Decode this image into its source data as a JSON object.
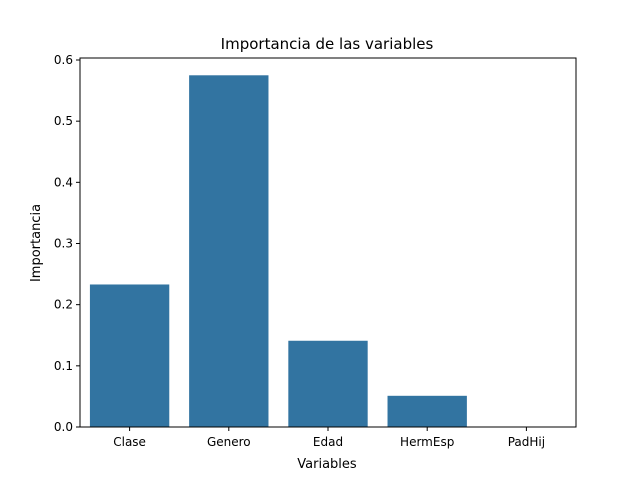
{
  "chart_data": {
    "type": "bar",
    "title": "Importancia de las variables",
    "xlabel": "Variables",
    "ylabel": "Importancia",
    "categories": [
      "Clase",
      "Genero",
      "Edad",
      "HermEsp",
      "PadHij"
    ],
    "values": [
      0.233,
      0.575,
      0.141,
      0.051,
      0.0
    ],
    "ylim": [
      0,
      0.6
    ],
    "yticks": [
      "0.0",
      "0.1",
      "0.2",
      "0.3",
      "0.4",
      "0.5",
      "0.6"
    ],
    "grid": false,
    "bar_color": "#3274a1"
  }
}
